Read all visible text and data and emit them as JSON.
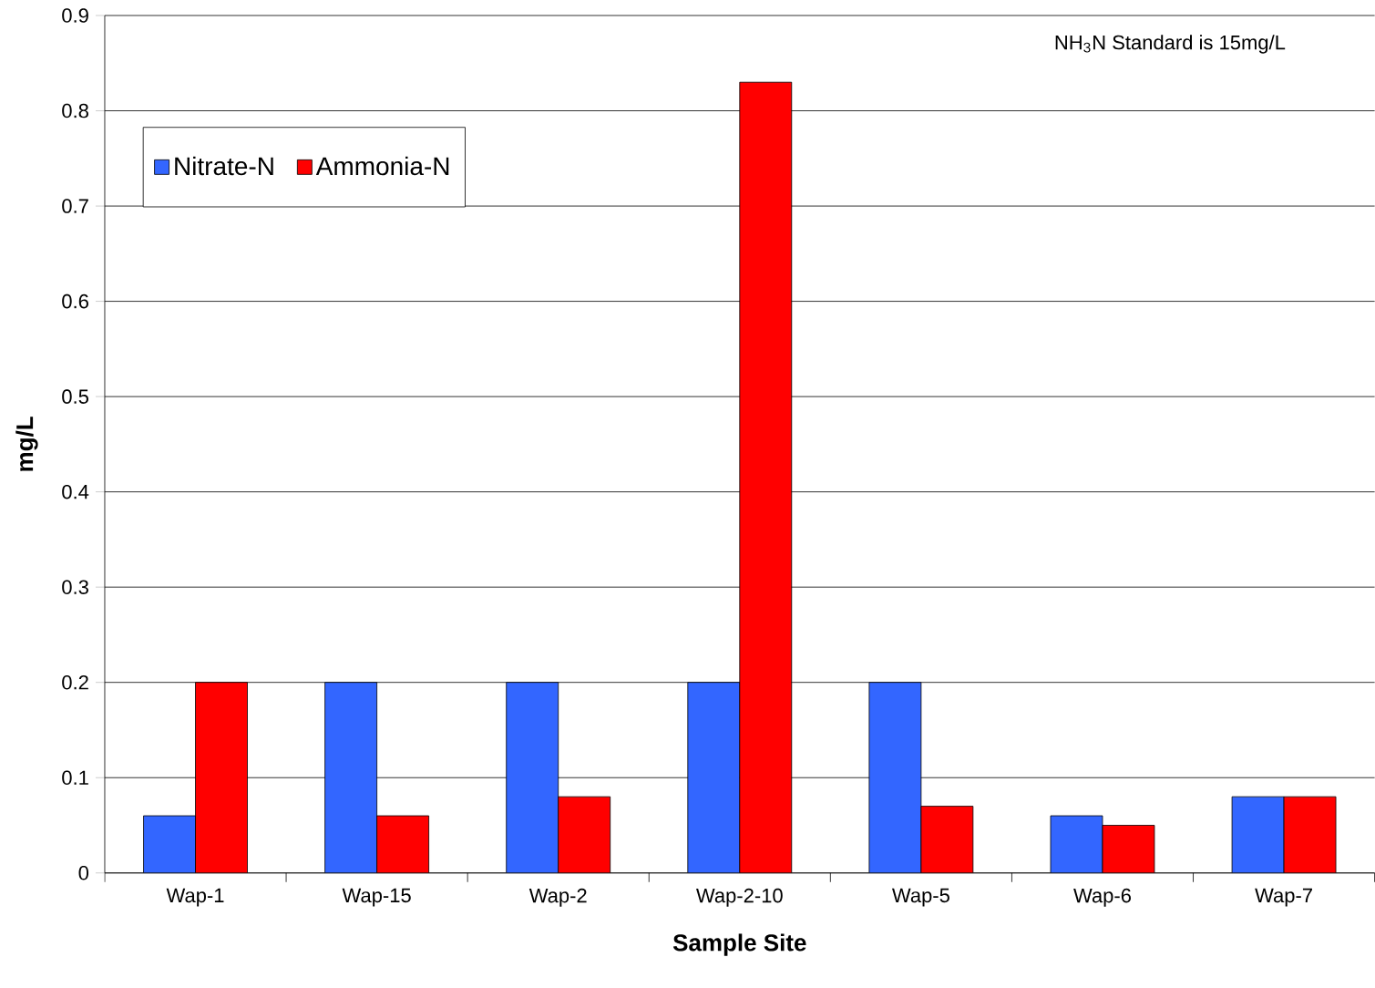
{
  "chart_data": {
    "type": "bar",
    "xlabel": "Sample Site",
    "ylabel": "mg/L",
    "categories": [
      "Wap-1",
      "Wap-15",
      "Wap-2",
      "Wap-2-10",
      "Wap-5",
      "Wap-6",
      "Wap-7"
    ],
    "series": [
      {
        "name": "Nitrate-N",
        "color": "#3366ff",
        "values": [
          0.06,
          0.2,
          0.2,
          0.2,
          0.2,
          0.06,
          0.08
        ]
      },
      {
        "name": "Ammonia-N",
        "color": "#ff0000",
        "values": [
          0.2,
          0.06,
          0.08,
          0.83,
          0.07,
          0.05,
          0.08
        ]
      }
    ],
    "ylim": [
      0,
      0.9
    ],
    "yticks": [
      0,
      0.1,
      0.2,
      0.3,
      0.4,
      0.5,
      0.6,
      0.7,
      0.8,
      0.9
    ],
    "grid": "y",
    "legend": "top left",
    "annotations": [
      "NH$_{3}$N Standard is 15mg/L"
    ]
  }
}
